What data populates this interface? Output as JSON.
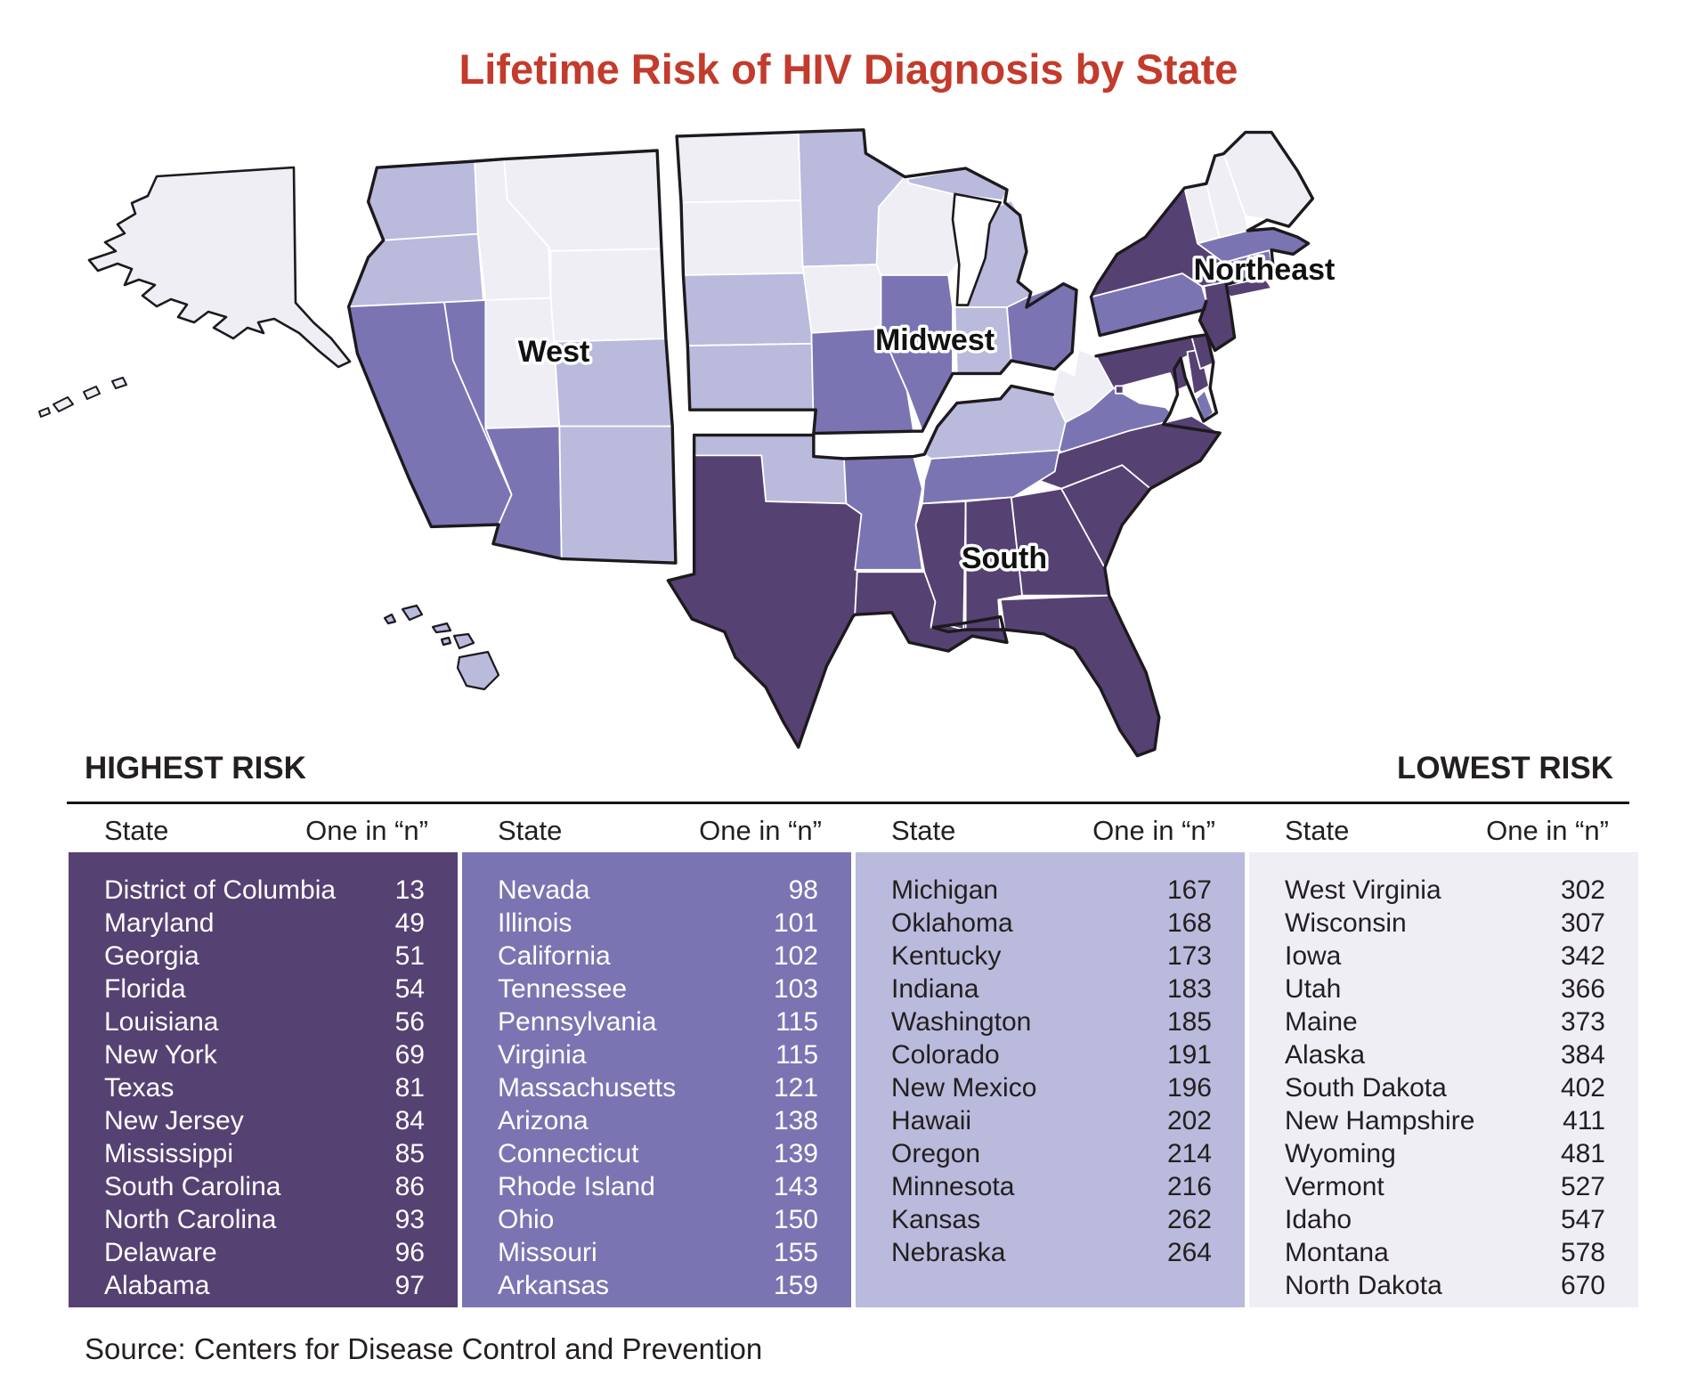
{
  "title": "Lifetime Risk of HIV Diagnosis by State",
  "map": {
    "region_labels": {
      "west": "West",
      "midwest": "Midwest",
      "south": "South",
      "northeast": "Northeast"
    },
    "tier_colors": [
      "#564173",
      "#7b74b3",
      "#b9badc",
      "#efeef5"
    ],
    "state_tiers": {
      "DC": 1,
      "MD": 1,
      "GA": 1,
      "FL": 1,
      "LA": 1,
      "NY": 1,
      "TX": 1,
      "NJ": 1,
      "MS": 1,
      "SC": 1,
      "NC": 1,
      "DE": 1,
      "AL": 1,
      "NV": 2,
      "IL": 2,
      "CA": 2,
      "TN": 2,
      "PA": 2,
      "VA": 2,
      "MA": 2,
      "AZ": 2,
      "CT": 2,
      "RI": 2,
      "OH": 2,
      "MO": 2,
      "AR": 2,
      "MI": 3,
      "OK": 3,
      "KY": 3,
      "IN": 3,
      "WA": 3,
      "CO": 3,
      "NM": 3,
      "HI": 3,
      "OR": 3,
      "MN": 3,
      "KS": 3,
      "NE": 3,
      "WV": 4,
      "WI": 4,
      "IA": 4,
      "UT": 4,
      "ME": 4,
      "AK": 4,
      "SD": 4,
      "NH": 4,
      "WY": 4,
      "VT": 4,
      "ID": 4,
      "MT": 4,
      "ND": 4
    }
  },
  "risk_scale": {
    "highest": "HIGHEST RISK",
    "lowest": "LOWEST RISK"
  },
  "table": {
    "header_state": "State",
    "header_value": "One in “n”"
  },
  "source": "Source: Centers for Disease Control and Prevention",
  "chart_data": {
    "type": "choropleth_map_with_table",
    "title": "Lifetime Risk of HIV Diagnosis by State",
    "unit": "One in “n” (lifetime risk of HIV diagnosis)",
    "region_labels": [
      "West",
      "Midwest",
      "Northeast",
      "South"
    ],
    "legend": {
      "left": "HIGHEST RISK",
      "right": "LOWEST RISK"
    },
    "source": "Source: Centers for Disease Control and Prevention",
    "groups": [
      {
        "tier": 1,
        "color": "#564173",
        "rows": [
          [
            "District of Columbia",
            13
          ],
          [
            "Maryland",
            49
          ],
          [
            "Georgia",
            51
          ],
          [
            "Florida",
            54
          ],
          [
            "Louisiana",
            56
          ],
          [
            "New York",
            69
          ],
          [
            "Texas",
            81
          ],
          [
            "New Jersey",
            84
          ],
          [
            "Mississippi",
            85
          ],
          [
            "South Carolina",
            86
          ],
          [
            "North Carolina",
            93
          ],
          [
            "Delaware",
            96
          ],
          [
            "Alabama",
            97
          ]
        ]
      },
      {
        "tier": 2,
        "color": "#7b74b3",
        "rows": [
          [
            "Nevada",
            98
          ],
          [
            "Illinois",
            101
          ],
          [
            "California",
            102
          ],
          [
            "Tennessee",
            103
          ],
          [
            "Pennsylvania",
            115
          ],
          [
            "Virginia",
            115
          ],
          [
            "Massachusetts",
            121
          ],
          [
            "Arizona",
            138
          ],
          [
            "Connecticut",
            139
          ],
          [
            "Rhode Island",
            143
          ],
          [
            "Ohio",
            150
          ],
          [
            "Missouri",
            155
          ],
          [
            "Arkansas",
            159
          ]
        ]
      },
      {
        "tier": 3,
        "color": "#b9badc",
        "rows": [
          [
            "Michigan",
            167
          ],
          [
            "Oklahoma",
            168
          ],
          [
            "Kentucky",
            173
          ],
          [
            "Indiana",
            183
          ],
          [
            "Washington",
            185
          ],
          [
            "Colorado",
            191
          ],
          [
            "New Mexico",
            196
          ],
          [
            "Hawaii",
            202
          ],
          [
            "Oregon",
            214
          ],
          [
            "Minnesota",
            216
          ],
          [
            "Kansas",
            262
          ],
          [
            "Nebraska",
            264
          ]
        ]
      },
      {
        "tier": 4,
        "color": "#efeef5",
        "rows": [
          [
            "West Virginia",
            302
          ],
          [
            "Wisconsin",
            307
          ],
          [
            "Iowa",
            342
          ],
          [
            "Utah",
            366
          ],
          [
            "Maine",
            373
          ],
          [
            "Alaska",
            384
          ],
          [
            "South Dakota",
            402
          ],
          [
            "New Hampshire",
            411
          ],
          [
            "Wyoming",
            481
          ],
          [
            "Vermont",
            527
          ],
          [
            "Idaho",
            547
          ],
          [
            "Montana",
            578
          ],
          [
            "North Dakota",
            670
          ]
        ]
      }
    ]
  }
}
